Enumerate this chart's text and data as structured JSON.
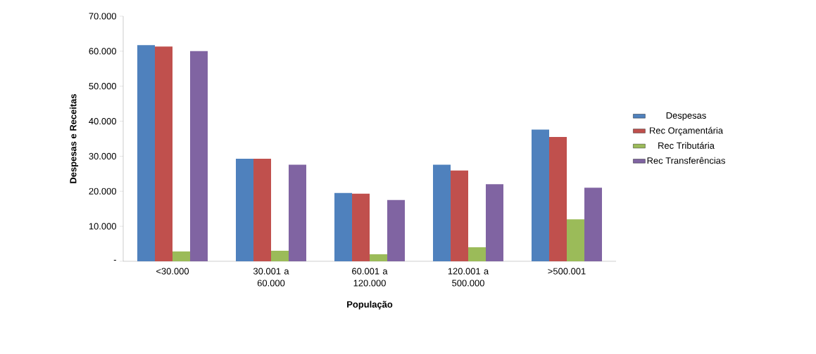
{
  "chart_data": {
    "type": "bar",
    "xlabel": "População",
    "ylabel": "Despesas e Receitas",
    "categories": [
      "<30.000",
      "30.001 a 60.000",
      "60.001 a 120.000",
      "120.001 a 500.000",
      ">500.001"
    ],
    "series": [
      {
        "name": "Despesas",
        "color": "#4f81bd",
        "values": [
          61700,
          29300,
          19500,
          27600,
          37600
        ]
      },
      {
        "name": "Rec Orçamentária",
        "color": "#c0504d",
        "values": [
          61300,
          29300,
          19300,
          25900,
          35500
        ]
      },
      {
        "name": "Rec Tributária",
        "color": "#9bbb59",
        "values": [
          2800,
          3000,
          2000,
          4000,
          12000
        ]
      },
      {
        "name": "Rec Transferências",
        "color": "#8064a2",
        "values": [
          60000,
          27600,
          17500,
          22000,
          21000
        ]
      }
    ],
    "ylim": [
      0,
      70000
    ],
    "yticks": [
      {
        "value": 0,
        "label": "-"
      },
      {
        "value": 10000,
        "label": "10.000"
      },
      {
        "value": 20000,
        "label": "20.000"
      },
      {
        "value": 30000,
        "label": "30.000"
      },
      {
        "value": 40000,
        "label": "40.000"
      },
      {
        "value": 50000,
        "label": "50.000"
      },
      {
        "value": 60000,
        "label": "60.000"
      },
      {
        "value": 70000,
        "label": "70.000"
      }
    ],
    "grid": false,
    "legend": "right"
  }
}
